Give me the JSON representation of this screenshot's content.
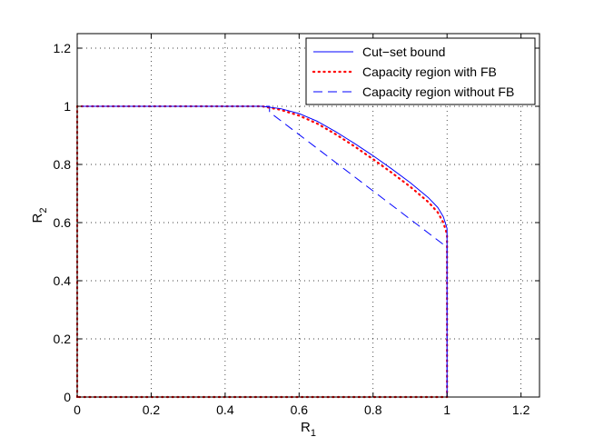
{
  "chart_data": {
    "type": "line",
    "xlabel": {
      "main": "R",
      "sub": "1"
    },
    "ylabel": {
      "main": "R",
      "sub": "2"
    },
    "xlim": [
      0,
      1.25
    ],
    "ylim": [
      0,
      1.25
    ],
    "xticks": [
      0,
      0.2,
      0.4,
      0.6,
      0.8,
      1,
      1.2
    ],
    "xtick_labels": [
      "0",
      "0.2",
      "0.4",
      "0.6",
      "0.8",
      "1",
      "1.2"
    ],
    "yticks": [
      0,
      0.2,
      0.4,
      0.6,
      0.8,
      1,
      1.2
    ],
    "ytick_labels": [
      "0",
      "0.2",
      "0.4",
      "0.6",
      "0.8",
      "1",
      "1.2"
    ],
    "grid": true,
    "legend_position": "top-right",
    "series": [
      {
        "name": "Cut−set bound",
        "color": "#0000ff",
        "style": "solid",
        "points": [
          [
            0,
            0
          ],
          [
            0,
            1
          ],
          [
            0.5,
            1
          ],
          [
            0.55,
            0.992
          ],
          [
            0.6,
            0.975
          ],
          [
            0.65,
            0.948
          ],
          [
            0.7,
            0.912
          ],
          [
            0.75,
            0.872
          ],
          [
            0.8,
            0.83
          ],
          [
            0.85,
            0.785
          ],
          [
            0.9,
            0.738
          ],
          [
            0.95,
            0.685
          ],
          [
            0.975,
            0.652
          ],
          [
            0.99,
            0.62
          ],
          [
            1.0,
            0.58
          ],
          [
            1.0,
            0.52
          ],
          [
            1,
            0
          ],
          [
            0,
            0
          ]
        ]
      },
      {
        "name": "Capacity region with FB",
        "color": "#ff0000",
        "style": "dotted",
        "points": [
          [
            0,
            0
          ],
          [
            0,
            1
          ],
          [
            0.5,
            1
          ],
          [
            0.55,
            0.988
          ],
          [
            0.6,
            0.968
          ],
          [
            0.65,
            0.94
          ],
          [
            0.7,
            0.903
          ],
          [
            0.75,
            0.862
          ],
          [
            0.8,
            0.818
          ],
          [
            0.85,
            0.772
          ],
          [
            0.9,
            0.724
          ],
          [
            0.95,
            0.67
          ],
          [
            0.975,
            0.635
          ],
          [
            0.99,
            0.6
          ],
          [
            1.0,
            0.56
          ],
          [
            1.0,
            0.52
          ],
          [
            1,
            0
          ],
          [
            0,
            0
          ]
        ]
      },
      {
        "name": "Capacity region without FB",
        "color": "#0000ff",
        "style": "dashed",
        "points": [
          [
            0,
            0
          ],
          [
            0,
            1
          ],
          [
            0.52,
            1
          ],
          [
            0.52,
            0.98
          ],
          [
            0.995,
            0.52
          ],
          [
            1.0,
            0.52
          ],
          [
            1,
            0
          ],
          [
            0,
            0
          ]
        ]
      }
    ]
  }
}
